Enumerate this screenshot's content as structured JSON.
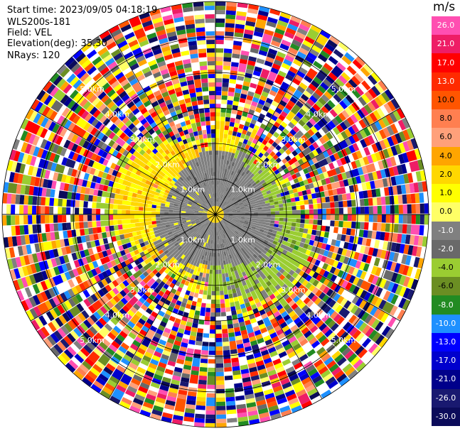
{
  "header": {
    "start_time": "Start time: 2023/09/05 04:18:19",
    "instrument": "WLS200s-181",
    "field": "Field: VEL",
    "elevation": "Elevation(deg): 35.30",
    "nrays": "NRays: 120"
  },
  "colorbar": {
    "unit": "m/s",
    "labels": [
      "26.0",
      "21.0",
      "17.0",
      "13.0",
      "10.0",
      "8.0",
      "6.0",
      "4.0",
      "2.0",
      "1.0",
      "0.0",
      "-1.0",
      "-2.0",
      "-4.0",
      "-6.0",
      "-8.0",
      "-10.0",
      "-13.0",
      "-17.0",
      "-21.0",
      "-26.0",
      "-30.0"
    ],
    "colors": [
      "#ff4fb1",
      "#ee1d66",
      "#ff0000",
      "#ff2a00",
      "#ff5500",
      "#ff7f50",
      "#ffa07a",
      "#ffa500",
      "#ffd700",
      "#ffff00",
      "#ffff66",
      "#808080",
      "#696969",
      "#9acd32",
      "#6b8e23",
      "#228b22",
      "#1e90ff",
      "#0000ff",
      "#0000cd",
      "#00008b",
      "#191970",
      "#0b0b5a"
    ]
  },
  "chart_data": {
    "type": "heatmap",
    "plot": "PPI",
    "field": "VEL",
    "unit": "m/s",
    "nrays": 120,
    "elevation_deg": 35.3,
    "max_range_km": 6.0,
    "range_ring_labels": [
      "1.0km",
      "2.0km",
      "3.0km",
      "4.0km",
      "5.0km"
    ],
    "color_levels": [
      -30.0,
      -26.0,
      -21.0,
      -17.0,
      -13.0,
      -10.0,
      -8.0,
      -6.0,
      -4.0,
      -2.0,
      -1.0,
      0.0,
      1.0,
      2.0,
      4.0,
      6.0,
      8.0,
      10.0,
      13.0,
      17.0,
      21.0,
      26.0
    ],
    "description_regions": [
      {
        "range_km": [
          0,
          1.5
        ],
        "velocity_ms": [
          -1.0,
          0.0
        ],
        "note": "near-zero velocity core"
      },
      {
        "range_km": [
          1.5,
          3.0
        ],
        "west_velocity_ms": [
          2.0,
          4.0
        ],
        "east_velocity_ms": [
          -2.0,
          -1.0
        ]
      },
      {
        "range_km": [
          3.0,
          6.0
        ],
        "velocity_ms": "noise (all levels)"
      }
    ]
  }
}
